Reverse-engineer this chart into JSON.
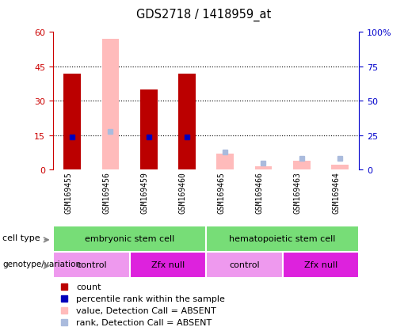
{
  "title": "GDS2718 / 1418959_at",
  "samples": [
    "GSM169455",
    "GSM169456",
    "GSM169459",
    "GSM169460",
    "GSM169465",
    "GSM169466",
    "GSM169463",
    "GSM169464"
  ],
  "count_values": [
    42,
    0,
    35,
    42,
    0,
    0,
    0,
    0
  ],
  "count_absent_values": [
    0,
    57,
    0,
    0,
    7,
    1.5,
    4,
    2
  ],
  "percentile_rank": [
    24,
    0,
    24,
    24,
    0,
    0,
    0,
    0
  ],
  "percentile_rank_absent": [
    0,
    28,
    0,
    0,
    13,
    5,
    8,
    8
  ],
  "is_absent": [
    false,
    true,
    false,
    false,
    true,
    true,
    true,
    true
  ],
  "ylim_left": [
    0,
    60
  ],
  "ylim_right": [
    0,
    100
  ],
  "yticks_left": [
    0,
    15,
    30,
    45,
    60
  ],
  "ytick_labels_left": [
    "0",
    "15",
    "30",
    "45",
    "60"
  ],
  "yticks_right": [
    0,
    25,
    50,
    75,
    100
  ],
  "ytick_labels_right": [
    "0",
    "25",
    "50",
    "75",
    "100%"
  ],
  "bar_width": 0.45,
  "count_color": "#bb0000",
  "count_absent_color": "#ffbbbb",
  "rank_color": "#0000bb",
  "rank_absent_color": "#aabbdd",
  "cell_type_color": "#77dd77",
  "control_color": "#ee99ee",
  "zfx_null_color": "#dd22dd",
  "bg_color": "#cccccc",
  "left_axis_color": "#cc0000",
  "right_axis_color": "#0000cc",
  "cell_type_labels": [
    "embryonic stem cell",
    "hematopoietic stem cell"
  ],
  "cell_type_ranges": [
    [
      0,
      4
    ],
    [
      4,
      8
    ]
  ],
  "geno_labels": [
    "control",
    "Zfx null",
    "control",
    "Zfx null"
  ],
  "geno_ranges": [
    [
      0,
      2
    ],
    [
      2,
      4
    ],
    [
      4,
      6
    ],
    [
      6,
      8
    ]
  ],
  "legend_items": [
    {
      "color": "#bb0000",
      "marker": "s",
      "label": "count"
    },
    {
      "color": "#0000bb",
      "marker": "s",
      "label": "percentile rank within the sample"
    },
    {
      "color": "#ffbbbb",
      "marker": "s",
      "label": "value, Detection Call = ABSENT"
    },
    {
      "color": "#aabbdd",
      "marker": "s",
      "label": "rank, Detection Call = ABSENT"
    }
  ]
}
